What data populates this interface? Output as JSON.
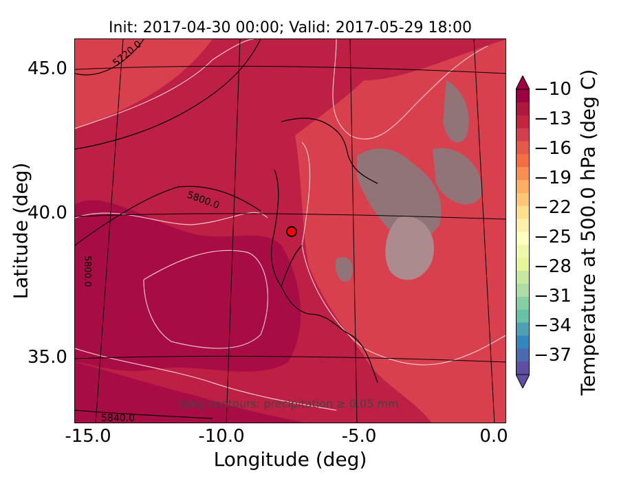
{
  "title": "Init: 2017-04-30 00:00; Valid: 2017-05-29 18:00",
  "xlabel": "Longitude (deg)",
  "ylabel": "Latitude (deg)",
  "xticks": [
    "-15.0",
    "-10.0",
    "-5.0",
    "0.0"
  ],
  "yticks": [
    "45.0",
    "40.0",
    "35.0"
  ],
  "colorbar": {
    "label": "Temperature at 500.0 hPa (deg C)",
    "ticks": [
      "−10",
      "−13",
      "−16",
      "−19",
      "−22",
      "−25",
      "−28",
      "−31",
      "−34",
      "−37"
    ],
    "colors": [
      "#9e0142",
      "#b0173f",
      "#c2253f",
      "#d53e4f",
      "#e35a49",
      "#f46d43",
      "#f88e52",
      "#fdae61",
      "#fdc675",
      "#fee08b",
      "#fef0a8",
      "#ffffbf",
      "#eef8a8",
      "#e6f598",
      "#c7e89e",
      "#abdda4",
      "#86cfa5",
      "#66c2a5",
      "#4ea0b5",
      "#3288bd",
      "#4a6bb0",
      "#5e4fa2"
    ]
  },
  "contour_labels": [
    "5720.0",
    "5800.0",
    "5840.0",
    "5800.0"
  ],
  "note": "Grey contours: precipitation ≥ 0.05 mm",
  "marker_color": "#ff0000"
}
